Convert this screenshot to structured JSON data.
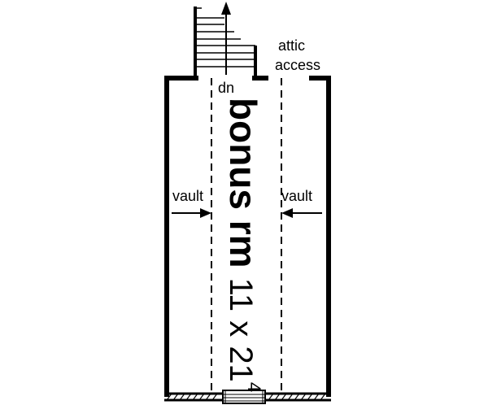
{
  "room": {
    "name": "bonus rm",
    "dimension_main": "11 x 21",
    "dimension_superscript": "4"
  },
  "labels": {
    "stair_direction": "dn",
    "attic_line1": "attic",
    "attic_line2": "access",
    "vault_left": "vault",
    "vault_right": "vault"
  },
  "icons": {
    "stair": "staircase-icon",
    "stair_arrow": "arrow-up-icon",
    "vault_arrow_left": "arrow-right-icon",
    "vault_arrow_right": "arrow-left-icon"
  },
  "colors": {
    "line": "#000000",
    "background": "#ffffff"
  }
}
